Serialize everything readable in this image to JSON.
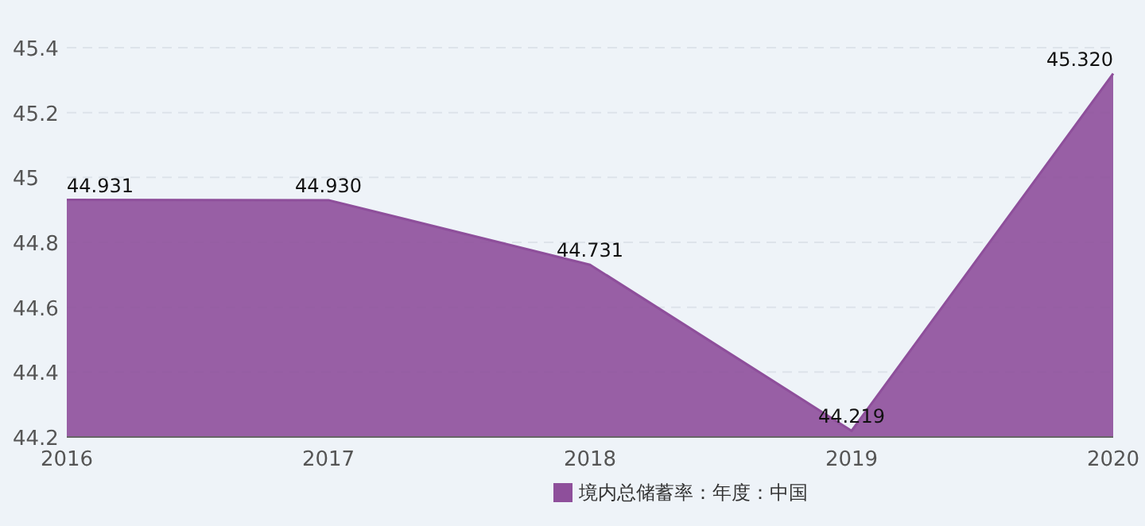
{
  "chart_data": {
    "type": "area",
    "categories": [
      "2016",
      "2017",
      "2018",
      "2019",
      "2020"
    ],
    "series": [
      {
        "name": "境内总储蓄率：年度：中国",
        "color": "#8e4f9b",
        "values": [
          44.931,
          44.93,
          44.731,
          44.219,
          45.32
        ],
        "value_labels": [
          "44.931",
          "44.930",
          "44.731",
          "44.219",
          "45.320"
        ]
      }
    ],
    "ylim": [
      44.2,
      45.4
    ],
    "yticks": [
      44.2,
      44.4,
      44.6,
      44.8,
      45,
      45.2,
      45.4
    ],
    "grid": "y",
    "legend": "bottom"
  }
}
